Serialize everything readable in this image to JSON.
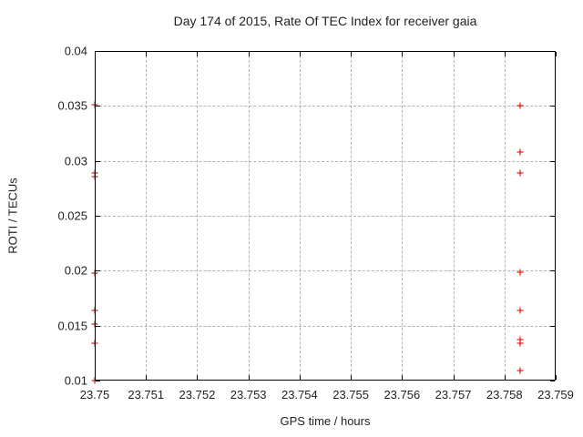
{
  "chart_data": {
    "type": "scatter",
    "title": "Day 174 of 2015, Rate Of TEC Index for receiver gaia",
    "xlabel": "GPS time / hours",
    "ylabel": "ROTI / TECUs",
    "xlim": [
      23.75,
      23.759
    ],
    "ylim": [
      0.01,
      0.04
    ],
    "grid": true,
    "legend": "none",
    "xticks": {
      "values": [
        23.75,
        23.751,
        23.752,
        23.753,
        23.754,
        23.755,
        23.756,
        23.757,
        23.758,
        23.759
      ],
      "labels": [
        "23.75",
        "23.751",
        "23.752",
        "23.753",
        "23.754",
        "23.755",
        "23.756",
        "23.757",
        "23.758",
        "23.759"
      ]
    },
    "yticks": {
      "values": [
        0.01,
        0.015,
        0.02,
        0.025,
        0.03,
        0.035,
        0.04
      ],
      "labels": [
        "0.01",
        "0.015",
        "0.02",
        "0.025",
        "0.03",
        "0.035",
        "0.04"
      ]
    },
    "series": [
      {
        "name": "ROTI",
        "marker": "plus",
        "color": "#e60000",
        "points": [
          [
            23.75,
            0.0351
          ],
          [
            23.75,
            0.0289
          ],
          [
            23.75,
            0.0286
          ],
          [
            23.75,
            0.0198
          ],
          [
            23.75,
            0.0164
          ],
          [
            23.75,
            0.0151
          ],
          [
            23.75,
            0.0134
          ],
          [
            23.75,
            0.01
          ],
          [
            23.7583,
            0.035
          ],
          [
            23.7583,
            0.0308
          ],
          [
            23.7583,
            0.0289
          ],
          [
            23.7583,
            0.0199
          ],
          [
            23.7583,
            0.0164
          ],
          [
            23.7583,
            0.0137
          ],
          [
            23.7583,
            0.0134
          ],
          [
            23.7583,
            0.0109
          ]
        ]
      }
    ]
  },
  "colors": {
    "marker": "#e60000",
    "grid": "#b3b3b3",
    "border": "#000000",
    "text": "#1f1f1f",
    "background": "#ffffff"
  }
}
